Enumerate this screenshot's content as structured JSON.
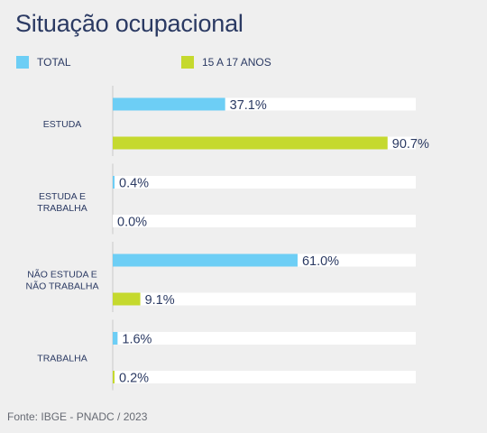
{
  "title": "Situação ocupacional",
  "source": "Fonte: IBGE - PNADC / 2023",
  "colors": {
    "total": "#6dcef5",
    "teen": "#c5d92e",
    "track": "#ffffff",
    "axis": "#c8c8c8",
    "text": "#2b3a63"
  },
  "chart_data": {
    "type": "bar",
    "orientation": "horizontal",
    "title": "Situação ocupacional",
    "categories": [
      [
        "ESTUDA"
      ],
      [
        "ESTUDA E",
        "TRABALHA"
      ],
      [
        "NÃO ESTUDA E",
        "NÃO TRABALHA"
      ],
      [
        "TRABALHA"
      ]
    ],
    "series": [
      {
        "name": "TOTAL",
        "values": [
          37.1,
          0.4,
          61.0,
          1.6
        ],
        "labels": [
          "37.1%",
          "0.4%",
          "61.0%",
          "1.6%"
        ]
      },
      {
        "name": "15 A 17 ANOS",
        "values": [
          90.7,
          0.0,
          9.1,
          0.2
        ],
        "labels": [
          "90.7%",
          "0.0%",
          "9.1%",
          "0.2%"
        ]
      }
    ],
    "xlim": [
      0,
      100
    ],
    "grid": false,
    "legend_position": "top-left"
  }
}
